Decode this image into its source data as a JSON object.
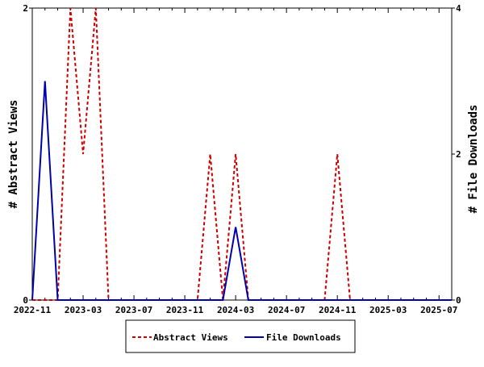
{
  "chart_data": {
    "type": "line",
    "ylabel_left": "# Abstract Views",
    "ylabel_right": "# File Downloads",
    "ylim_left": [
      0,
      2
    ],
    "ylim_right": [
      0,
      4
    ],
    "yticks_left": [
      "0",
      "2"
    ],
    "yticks_right": [
      "0",
      "2",
      "4"
    ],
    "x_tick_labels": [
      "2022-11",
      "2023-03",
      "2023-07",
      "2023-11",
      "2024-03",
      "2024-07",
      "2024-11",
      "2025-03",
      "2025-07"
    ],
    "x_months": [
      "2022-11",
      "2022-12",
      "2023-01",
      "2023-02",
      "2023-03",
      "2023-04",
      "2023-05",
      "2023-06",
      "2023-07",
      "2023-08",
      "2023-09",
      "2023-10",
      "2023-11",
      "2023-12",
      "2024-01",
      "2024-02",
      "2024-03",
      "2024-04",
      "2024-05",
      "2024-06",
      "2024-07",
      "2024-08",
      "2024-09",
      "2024-10",
      "2024-11",
      "2024-12",
      "2025-01",
      "2025-02",
      "2025-03",
      "2025-04",
      "2025-05",
      "2025-06",
      "2025-07",
      "2025-08"
    ],
    "series": [
      {
        "name": "Abstract Views",
        "axis": "left",
        "color": "#cc0000",
        "style": "dashed",
        "values": [
          0,
          0,
          0,
          2,
          1,
          2,
          0,
          0,
          0,
          0,
          0,
          0,
          0,
          0,
          1,
          0,
          1,
          0,
          0,
          0,
          0,
          0,
          0,
          0,
          1,
          0,
          0,
          0,
          0,
          0,
          0,
          0,
          0,
          0
        ]
      },
      {
        "name": "File Downloads",
        "axis": "right",
        "color": "#0000aa",
        "style": "solid",
        "values": [
          0,
          3,
          0,
          0,
          0,
          0,
          0,
          0,
          0,
          0,
          0,
          0,
          0,
          0,
          0,
          0,
          1,
          0,
          0,
          0,
          0,
          0,
          0,
          0,
          0,
          0,
          0,
          0,
          0,
          0,
          0,
          0,
          0,
          0
        ]
      }
    ],
    "legend": {
      "position": "bottom",
      "labels": [
        "Abstract Views",
        "File Downloads"
      ]
    },
    "grid": false
  }
}
